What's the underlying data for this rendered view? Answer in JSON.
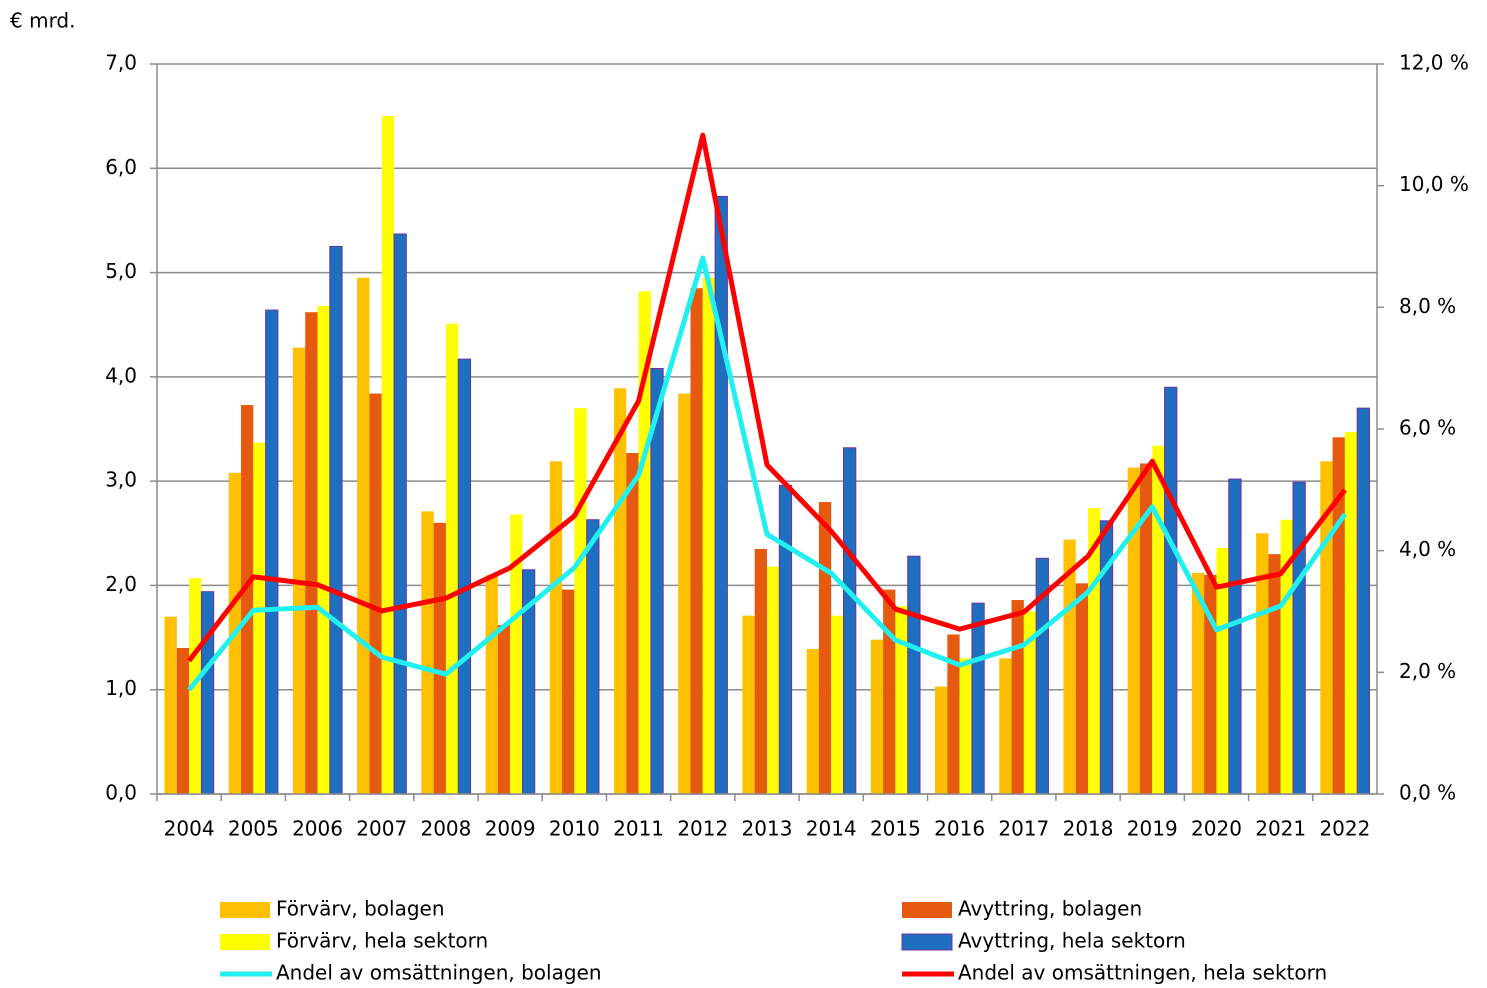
{
  "chart_data": {
    "type": "bar_line",
    "ylabel": "€ mrd.",
    "categories": [
      "2004",
      "2005",
      "2006",
      "2007",
      "2008",
      "2009",
      "2010",
      "2011",
      "2012",
      "2013",
      "2014",
      "2015",
      "2016",
      "2017",
      "2018",
      "2019",
      "2020",
      "2021",
      "2022"
    ],
    "ylim": [
      0,
      7
    ],
    "yticks": [
      {
        "value": 0,
        "label": "0,0"
      },
      {
        "value": 1,
        "label": "1,0"
      },
      {
        "value": 2,
        "label": "2,0"
      },
      {
        "value": 3,
        "label": "3,0"
      },
      {
        "value": 4,
        "label": "4,0"
      },
      {
        "value": 5,
        "label": "5,0"
      },
      {
        "value": 6,
        "label": "6,0"
      },
      {
        "value": 7,
        "label": "7,0"
      }
    ],
    "y2lim": [
      0,
      12
    ],
    "y2ticks": [
      {
        "value": 0,
        "label": "0,0 %"
      },
      {
        "value": 2,
        "label": "2,0 %"
      },
      {
        "value": 4,
        "label": "4,0 %"
      },
      {
        "value": 6,
        "label": "6,0 %"
      },
      {
        "value": 8,
        "label": "8,0 %"
      },
      {
        "value": 10,
        "label": "10,0 %"
      },
      {
        "value": 12,
        "label": "12,0 %"
      }
    ],
    "grid": true,
    "series": [
      {
        "name": "Förvärv, bolagen",
        "type": "bar",
        "color": "#FFC000",
        "values": [
          1.7,
          3.08,
          4.28,
          4.95,
          2.71,
          2.1,
          3.19,
          3.89,
          3.84,
          1.71,
          1.39,
          1.48,
          1.03,
          1.3,
          2.44,
          3.13,
          2.12,
          2.5,
          3.19
        ]
      },
      {
        "name": "Avyttring, bolagen",
        "type": "bar",
        "color": "#E65A10",
        "values": [
          1.4,
          3.73,
          4.62,
          3.84,
          2.6,
          1.62,
          1.96,
          3.27,
          4.85,
          2.35,
          2.8,
          1.96,
          1.53,
          1.86,
          2.02,
          3.17,
          2.1,
          2.3,
          3.42
        ]
      },
      {
        "name": "Förvärv, hela sektorn",
        "type": "bar",
        "color": "#FFFF00",
        "values": [
          2.07,
          3.37,
          4.68,
          6.5,
          4.51,
          2.68,
          3.7,
          4.82,
          4.95,
          2.18,
          1.71,
          1.8,
          1.3,
          1.75,
          2.74,
          3.34,
          2.36,
          2.63,
          3.47
        ]
      },
      {
        "name": "Avyttring, hela sektorn",
        "type": "bar",
        "color": "#1F6FC0",
        "values": [
          1.94,
          4.64,
          5.25,
          5.37,
          4.17,
          2.15,
          2.63,
          4.08,
          5.73,
          2.96,
          3.32,
          2.28,
          1.83,
          2.26,
          2.62,
          3.9,
          3.02,
          2.99,
          3.7
        ]
      },
      {
        "name": "Andel av omsättningen, bolagen",
        "type": "line",
        "axis": "y2",
        "color": "#20F0F0",
        "values": [
          1.71,
          3.02,
          3.07,
          2.25,
          1.97,
          2.84,
          3.72,
          5.24,
          8.81,
          4.27,
          3.63,
          2.53,
          2.12,
          2.45,
          3.32,
          4.72,
          2.7,
          3.09,
          4.6
        ]
      },
      {
        "name": "Andel av omsättningen, hela sektorn",
        "type": "line",
        "axis": "y2",
        "color": "#FF0000",
        "values": [
          2.19,
          3.57,
          3.44,
          3.01,
          3.22,
          3.72,
          4.57,
          6.46,
          10.83,
          5.41,
          4.32,
          3.04,
          2.71,
          2.99,
          3.91,
          5.47,
          3.4,
          3.62,
          5.0
        ]
      }
    ]
  }
}
